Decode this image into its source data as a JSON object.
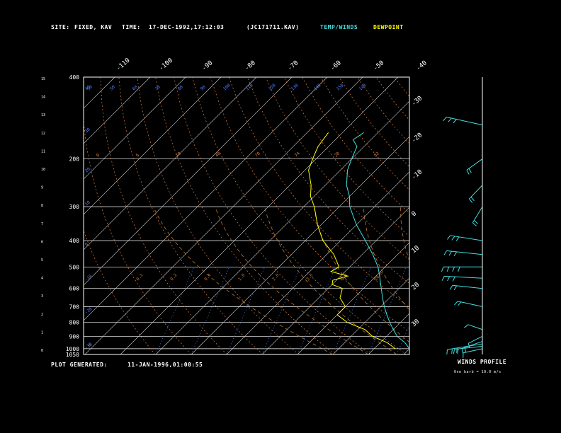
{
  "header": {
    "site_label": "SITE:",
    "site_value": "FIXED, KAV",
    "time_label": "TIME:",
    "time_value": "17-DEC-1992,17:12:03",
    "file_id": "(JC171711.KAV)",
    "legend_temp": "TEMP/WINDS",
    "legend_dew": "DEWPOINT"
  },
  "footer": {
    "generated_label": "PLOT GENERATED:",
    "generated_value": "11-JAN-1996,01:00:55"
  },
  "wind_panel": {
    "title": "WINDS PROFILE",
    "note": "One barb = 10.0 m/s"
  },
  "colors": {
    "temp": "#40e0e0",
    "dew": "#ffff00",
    "isotherm": "#d8d8d8",
    "dry_adiabat": "#e08040",
    "moist_adiabat": "#c07830",
    "mixing_ratio": "#5080ff",
    "frame": "#ffffff"
  },
  "chart_data": {
    "type": "line",
    "diagram": "skew-T log-p",
    "pressure_levels": [
      "400",
      "200",
      "300",
      "400",
      "500",
      "600",
      "700",
      "800",
      "900",
      "1000",
      "1050"
    ],
    "height_ticks": [
      "15",
      "14",
      "13",
      "12",
      "11",
      "10",
      "9",
      "8",
      "7",
      "6",
      "5",
      "4",
      "3",
      "2",
      "1",
      "0"
    ],
    "top_temp_labels": [
      "-110",
      "-100",
      "-90",
      "-80",
      "-70",
      "-60",
      "-50",
      "-40"
    ],
    "right_temp_labels": [
      "-30",
      "-20",
      "-10",
      "0",
      "10",
      "20",
      "30"
    ],
    "dry_adiabat_labels": [
      "0",
      "6",
      "10",
      "40",
      "70",
      "74",
      "20",
      "52"
    ],
    "mixing_ratio_labels": [
      "0.1",
      "0.2",
      "0.4",
      "1.0",
      "2.0",
      "3.5",
      "8.0",
      "20.0"
    ],
    "theta_labels": [
      "50",
      "50",
      "60",
      "70",
      "80",
      "90",
      "100",
      "110",
      "120",
      "130",
      "140",
      "150",
      "140"
    ],
    "left_theta_labels": [
      "40",
      "30",
      "20",
      "10",
      "0",
      "-10",
      "-20",
      "-30",
      "-35"
    ],
    "series": [
      {
        "name": "TEMP/WINDS",
        "points": [
          [
            160,
            -64
          ],
          [
            170,
            -65
          ],
          [
            180,
            -62
          ],
          [
            200,
            -60
          ],
          [
            220,
            -58
          ],
          [
            250,
            -54
          ],
          [
            275,
            -50
          ],
          [
            300,
            -47
          ],
          [
            350,
            -40
          ],
          [
            400,
            -33
          ],
          [
            450,
            -27
          ],
          [
            500,
            -22
          ],
          [
            540,
            -19
          ],
          [
            600,
            -15
          ],
          [
            650,
            -12
          ],
          [
            700,
            -9
          ],
          [
            750,
            -6
          ],
          [
            800,
            -3
          ],
          [
            850,
            0
          ],
          [
            900,
            3
          ],
          [
            950,
            7
          ],
          [
            1000,
            10
          ]
        ]
      },
      {
        "name": "DEWPOINT",
        "points": [
          [
            160,
            -74
          ],
          [
            180,
            -73
          ],
          [
            200,
            -71
          ],
          [
            220,
            -69
          ],
          [
            250,
            -64
          ],
          [
            275,
            -61
          ],
          [
            300,
            -57
          ],
          [
            350,
            -51
          ],
          [
            400,
            -45
          ],
          [
            450,
            -38
          ],
          [
            500,
            -33
          ],
          [
            520,
            -34
          ],
          [
            540,
            -28
          ],
          [
            560,
            -31
          ],
          [
            580,
            -30
          ],
          [
            600,
            -26
          ],
          [
            650,
            -24
          ],
          [
            700,
            -20
          ],
          [
            750,
            -20
          ],
          [
            800,
            -15
          ],
          [
            850,
            -8
          ],
          [
            900,
            -4
          ],
          [
            950,
            2
          ],
          [
            1000,
            6
          ]
        ]
      }
    ],
    "winds": [
      [
        1000,
        12,
        250
      ],
      [
        980,
        20,
        260
      ],
      [
        960,
        28,
        255
      ],
      [
        940,
        15,
        240
      ],
      [
        900,
        10,
        230
      ],
      [
        850,
        8,
        300
      ],
      [
        700,
        18,
        290
      ],
      [
        600,
        22,
        280
      ],
      [
        550,
        30,
        275
      ],
      [
        500,
        35,
        270
      ],
      [
        450,
        28,
        280
      ],
      [
        400,
        25,
        285
      ],
      [
        300,
        20,
        200
      ],
      [
        250,
        18,
        210
      ],
      [
        200,
        16,
        220
      ],
      [
        150,
        30,
        290
      ]
    ]
  }
}
